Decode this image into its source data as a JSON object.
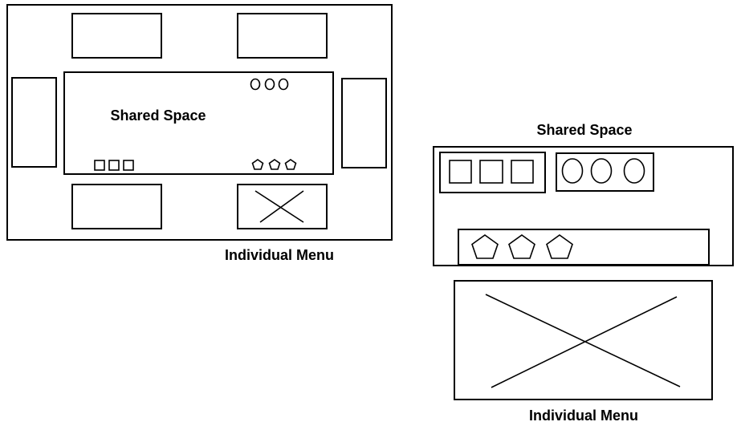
{
  "left_layout": {
    "shared_space_label": "Shared Space",
    "individual_menu_label": "Individual Menu"
  },
  "right_layout": {
    "shared_space_label": "Shared Space",
    "individual_menu_label": "Individual Menu"
  },
  "colors": {
    "stroke": "#000000",
    "background": "#ffffff"
  }
}
